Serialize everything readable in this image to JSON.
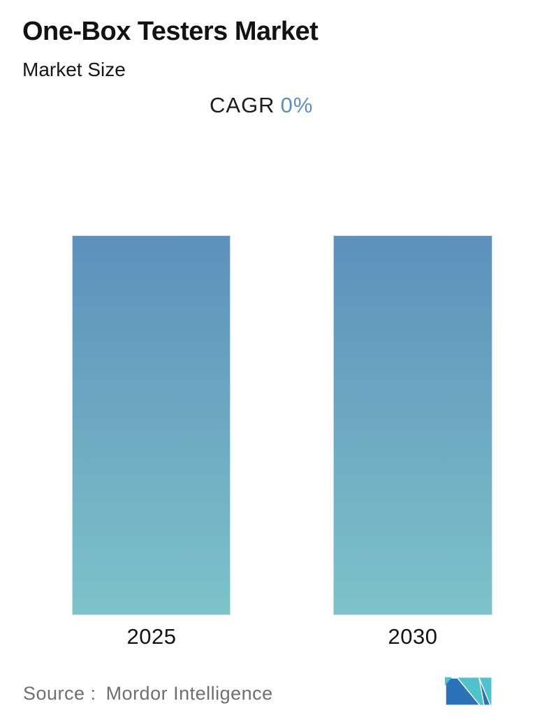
{
  "header": {
    "title": "One-Box Testers Market",
    "subtitle": "Market Size",
    "cagr_label": "CAGR",
    "cagr_value": "0%"
  },
  "chart_data": {
    "type": "bar",
    "categories": [
      "2025",
      "2030"
    ],
    "values": [
      1,
      1
    ],
    "title": "One-Box Testers Market",
    "subtitle": "Market Size",
    "annotations": [
      "CAGR 0%"
    ],
    "xlabel": "",
    "ylabel": "",
    "ylim": [
      0,
      1
    ],
    "grid": false,
    "legend": "none",
    "axes_visible": false,
    "bar_equal_heights_note": "Both bars render at full equal height (CAGR 0%)"
  },
  "footer": {
    "source_label": "Source :",
    "source_value": "Mordor Intelligence",
    "logo": "mordor-intelligence-logo"
  },
  "colors": {
    "cagr_blue": "#5B8FC2",
    "bar_gradient_top": "#5D90BB",
    "bar_gradient_bottom": "#7DC3C9",
    "bar_border": "#CFE0EA",
    "source_gray": "#6F6F6F",
    "logo_teal": "#4EC3CB",
    "logo_blue": "#2B72B8",
    "text_dark": "#121212"
  }
}
